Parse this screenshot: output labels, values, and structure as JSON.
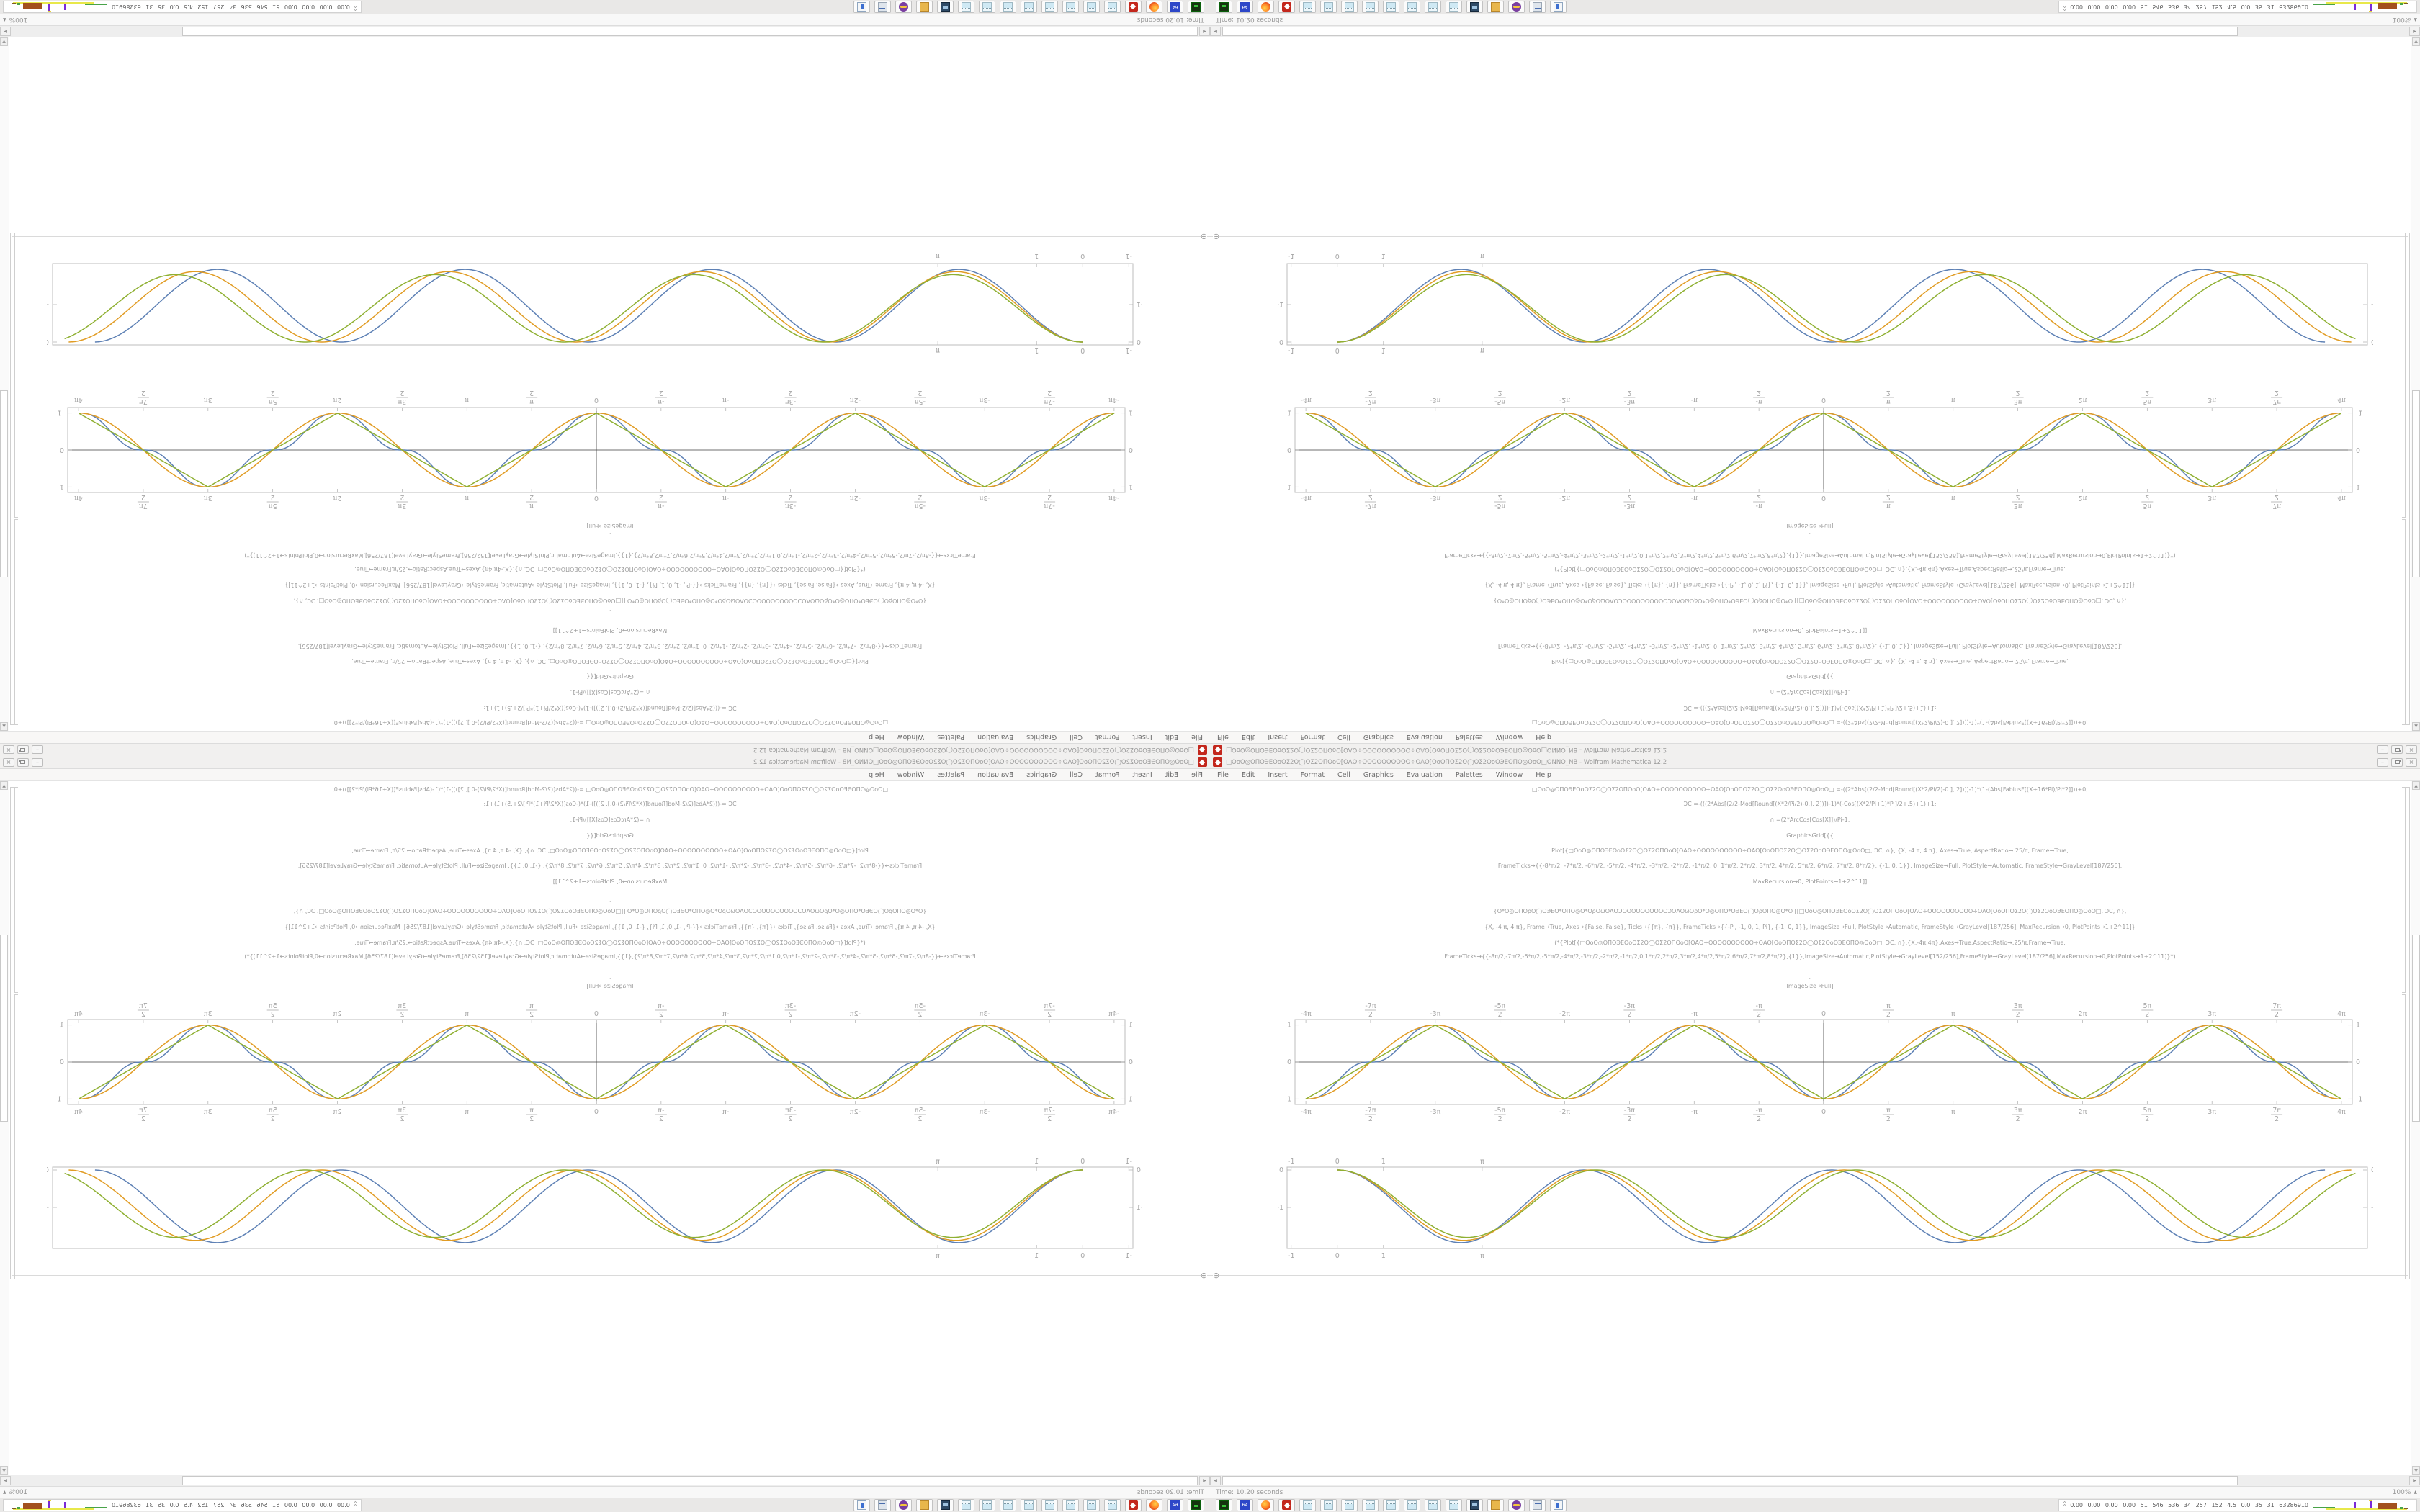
{
  "window": {
    "icon": "mathematica-spikey-icon",
    "title_symbols": "□ΟοΟ◎ΟΠΟЭΕΟοΟΣ2Ο◯ΟΣ2ΟΠΟοΟ[ΟΑΟ÷ΟΟΟΟΟΟΟΟΟΟ÷ΟΑΟ[ΟοΟΠΟΣ2Ο◯ΟΣ2ΟοΟЭΕΟΠΟ◎ΟοΟ□ΟΝΝΟ_ΝΒ",
    "title_suffix": " - Wolfram Mathematica 12.2",
    "buttons": [
      {
        "name": "minimize",
        "glyph": "–"
      },
      {
        "name": "restore",
        "glyph": ""
      },
      {
        "name": "close",
        "glyph": "×"
      }
    ]
  },
  "menu": {
    "items": [
      "File",
      "Edit",
      "Insert",
      "Format",
      "Cell",
      "Graphics",
      "Evaluation",
      "Palettes",
      "Window",
      "Help"
    ]
  },
  "notebook": {
    "insert_icon": "⊕",
    "code_lines": [
      "□ΟοΟ◎ΟΠΟЭΕΟοΟΣ2Ο◯ΟΣ2ΟΠΟοΟ[ΟΑΟ÷ΟΟΟΟΟΟΟΟΟΟ÷ΟΑΟ[ΟοΟΠΟΣ2Ο◯ΟΣ2ΟοΟЭΕΟΠΟ◎ΟοΟ□  =-((2*Abs[(2/2-Mod[Round[(X*2/Pi/2)-0.], 2])])-1)*(1-(Abs[FabiusF[(X+16*Pi)/Pi*2]]))+0;",
      "ƆC =-(((2*Abs[(2/2-Mod[Round[(X*2/Pi/2)-0.], 2])])-1)*(-Cos[(X*2/Pi+1)*Pi]/2+.5)+1)+1;",
      "∩ =(2*ArcCos[Cos[X]])/Pi-1;",
      "GraphicsGrid[{{",
      "Plot[{□ΟοΟ◎ΟΠΟЭΕΟοΟΣ2Ο◯ΟΣ2ΟΠΟοΟ[ΟΑΟ÷ΟΟΟΟΟΟΟΟΟΟ÷ΟΑΟ[ΟοΟΠΟΣ2Ο◯ΟΣ2ΟοΟЭΕΟΠΟ◎ΟοΟ□, ƆC, ∩}, {X, -4 π, 4 π}, Axes→True, AspectRatio→.25/π, Frame→True,",
      "FrameTicks→{{-8*π/2, -7*π/2, -6*π/2, -5*π/2, -4*π/2, -3*π/2, -2*π/2, -1*π/2, 0, 1*π/2, 2*π/2, 3*π/2, 4*π/2, 5*π/2, 6*π/2, 7*π/2, 8*π/2}, {-1, 0, 1}}, ImageSize→Full, PlotStyle→Automatic, FrameStyle→GrayLevel[187/256],",
      "MaxRecursion→0, PlotPoints→1+2^11]]",
      ",",
      "{Ο*Ο◎ΟΠΟρΟ◯ΟЭΕΟ*ΟΠΟ◎Ο*ΟρΟωΟΑΟƆΟΟΟΟΟΟΟΟΟΟƆΟΑΟωΟρΟ*Ο◎ΟΠΟ*ΟЭΕΟ◯ΟρΟΠΟ◎Ο*Ο  [[□ΟοΟ◎ΟΠΟЭΕΟοΟΣ2Ο◯ΟΣ2ΟΠΟοΟ[ΟΑΟ÷ΟΟΟΟΟΟΟΟΟΟ÷ΟΑΟ[ΟοΟΠΟΣ2Ο◯ΟΣ2ΟοΟЭΕΟΠΟ◎ΟοΟ□, ƆC, ∩},",
      "{X, -4 π, 4 π}, Frame→True, Axes→{False, False}, Ticks→{{π}, {π}}, FrameTicks→{{-Pi, -1, 0, 1, Pi}, {-1, 0, 1}}, ImageSize→Full, PlotStyle→Automatic, FrameStyle→GrayLevel[187/256], MaxRecursion→0, PlotPoints→1+2^11]}",
      "(*{Plot[{□ΟοΟ◎ΟΠΟЭΕΟοΟΣ2Ο◯ΟΣ2ΟΠΟοΟ[ΟΑΟ÷ΟΟΟΟΟΟΟΟΟΟ÷ΟΑΟ[ΟοΟΠΟΣ2Ο◯ΟΣ2ΟοΟЭΕΟΠΟ◎ΟοΟ□, ƆC, ∩},{X,-4π,4π},Axes→True,AspectRatio→.25/π,Frame→True,",
      "FrameTicks→{{-8π/2,-7π/2,-6*π/2,-5*π/2,-4*π/2,-3*π/2,-2*π/2,-1*π/2,0,1*π/2,2*π/2,3*π/2,4*π/2,5*π/2,6*π/2,7*π/2,8*π/2},{1}},ImageSize→Automatic,PlotStyle→GrayLevel[152/256],FrameStyle→GrayLevel[187/256],MaxRecursion→0,PlotPoints→1+2^11]}*)",
      ",",
      "ImageSize→Full]"
    ]
  },
  "chart_data": [
    {
      "type": "line",
      "title": "",
      "xlabel": "",
      "ylabel": "",
      "frame": true,
      "axes": true,
      "grid": false,
      "legend_position": "none",
      "xlim": [
        -12.83,
        12.83
      ],
      "ylim": [
        -1.15,
        1.15
      ],
      "x_ticks": [
        {
          "label": "-4π",
          "value": -12.566
        },
        {
          "num": "-7π",
          "den": "2",
          "value": -10.996
        },
        {
          "label": "-3π",
          "value": -9.4248
        },
        {
          "num": "-5π",
          "den": "2",
          "value": -7.854
        },
        {
          "label": "-2π",
          "value": -6.2832
        },
        {
          "num": "-3π",
          "den": "2",
          "value": -4.7124
        },
        {
          "label": "-π",
          "value": -3.1416
        },
        {
          "num": "-π",
          "den": "2",
          "value": -1.5708
        },
        {
          "label": "0",
          "value": 0
        },
        {
          "num": "π",
          "den": "2",
          "value": 1.5708
        },
        {
          "label": "π",
          "value": 3.1416
        },
        {
          "num": "3π",
          "den": "2",
          "value": 4.7124
        },
        {
          "label": "2π",
          "value": 6.2832
        },
        {
          "num": "5π",
          "den": "2",
          "value": 7.854
        },
        {
          "label": "3π",
          "value": 9.4248
        },
        {
          "num": "7π",
          "den": "2",
          "value": 10.996
        },
        {
          "label": "4π",
          "value": 12.566
        }
      ],
      "y_ticks": [
        {
          "label": "1",
          "value": 1
        },
        {
          "label": "0",
          "value": 0
        },
        {
          "label": "-1",
          "value": -1
        }
      ],
      "series": [
        {
          "name": "fabius-flat-top-wave",
          "color": "#5e81b5",
          "shape": "flat_top",
          "period": 6.2832,
          "amplitude": 1
        },
        {
          "name": "cosine-wave",
          "color": "#e19c24",
          "shape": "neg_cosine",
          "period": 6.2832,
          "amplitude": 1
        },
        {
          "name": "triangle-wave",
          "color": "#8fb032",
          "shape": "triangle",
          "period": 6.2832,
          "amplitude": 1
        }
      ]
    },
    {
      "type": "line",
      "title": "",
      "xlabel": "",
      "ylabel": "",
      "frame": true,
      "axes": false,
      "grid": false,
      "legend_position": "none",
      "xlim": [
        -1.09,
        22.34
      ],
      "ylim": [
        -2.1,
        0.07
      ],
      "x_ticks": [
        {
          "label": "-1",
          "value": -1
        },
        {
          "label": "0",
          "value": 0
        },
        {
          "label": "1",
          "value": 1
        },
        {
          "label": "π",
          "value": 3.1416
        }
      ],
      "y_ticks": [
        {
          "label": "0",
          "value": 0
        },
        {
          "label": "-1",
          "value": -1
        }
      ],
      "series": [
        {
          "name": "drift-cosine-blue",
          "color": "#5e81b5",
          "shape": "dip_cosine",
          "period": 5.36,
          "amplitude": 0.97
        },
        {
          "name": "drift-cosine-orange",
          "color": "#e19c24",
          "shape": "dip_cosine",
          "period": 5.5,
          "amplitude": 0.94
        },
        {
          "name": "drift-cosine-green",
          "color": "#8fb032",
          "shape": "dip_cosine",
          "period": 5.62,
          "amplitude": 0.9
        }
      ]
    }
  ],
  "scrollbar": {
    "up": "▲",
    "down": "▼",
    "left": "◀",
    "right": "▶"
  },
  "status_bar": {
    "evaluation_time": "Time: 10.20 seconds",
    "magnification": "100%",
    "magnification_dropdown": "▲"
  },
  "taskbar": {
    "icons": [
      {
        "name": "terminal"
      },
      {
        "name": "floppy",
        "label": "64"
      },
      {
        "name": "firefox"
      },
      {
        "name": "spikey"
      },
      {
        "name": "notepad"
      },
      {
        "name": "notepad"
      },
      {
        "name": "notepad"
      },
      {
        "name": "notepad"
      },
      {
        "name": "notepad"
      },
      {
        "name": "notepad"
      },
      {
        "name": "notepad"
      },
      {
        "name": "notepad"
      },
      {
        "name": "monitor"
      },
      {
        "name": "folder"
      },
      {
        "name": "purple"
      },
      {
        "name": "scroll"
      },
      {
        "name": "winlist"
      }
    ],
    "sysmon_chevron": "^",
    "sysmon_values": "0.00 0.00 0.00 0.00 51 546 536 34 257 152 4.5 0.0 35 31 63286910"
  }
}
